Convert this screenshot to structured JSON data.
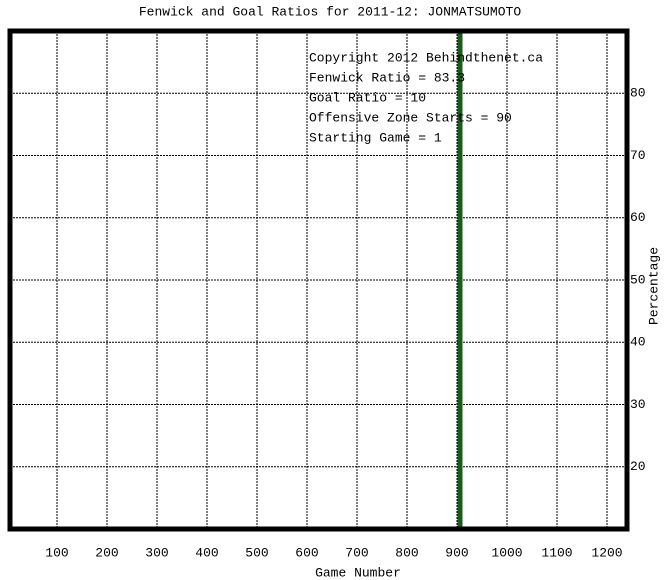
{
  "chart_data": {
    "type": "vline",
    "title": "Fenwick and Goal Ratios for 2011-12: JONMATSUMOTO",
    "xlabel": "Game Number",
    "ylabel": "Percentage",
    "xlim": [
      6,
      1240
    ],
    "ylim": [
      10,
      90
    ],
    "xticks": [
      100,
      200,
      300,
      400,
      500,
      600,
      700,
      800,
      900,
      1000,
      1100,
      1200
    ],
    "yticks": [
      20,
      30,
      40,
      50,
      60,
      70,
      80
    ],
    "grid": true,
    "vlines": [
      {
        "x": 906,
        "color": "#1a5c1a"
      }
    ],
    "annotations": [
      {
        "text": "Copyright 2012 Behindthenet.ca",
        "color": "#000000"
      },
      {
        "text": "Fenwick Ratio = 83.3",
        "color": "#1a2a6c"
      },
      {
        "text": "Goal Ratio = 10",
        "color": "#8b5a2b"
      },
      {
        "text": "Offensive Zone Starts = 90",
        "color": "#1a6b1a"
      },
      {
        "text": "Starting Game = 1",
        "color": "#000000"
      }
    ]
  }
}
